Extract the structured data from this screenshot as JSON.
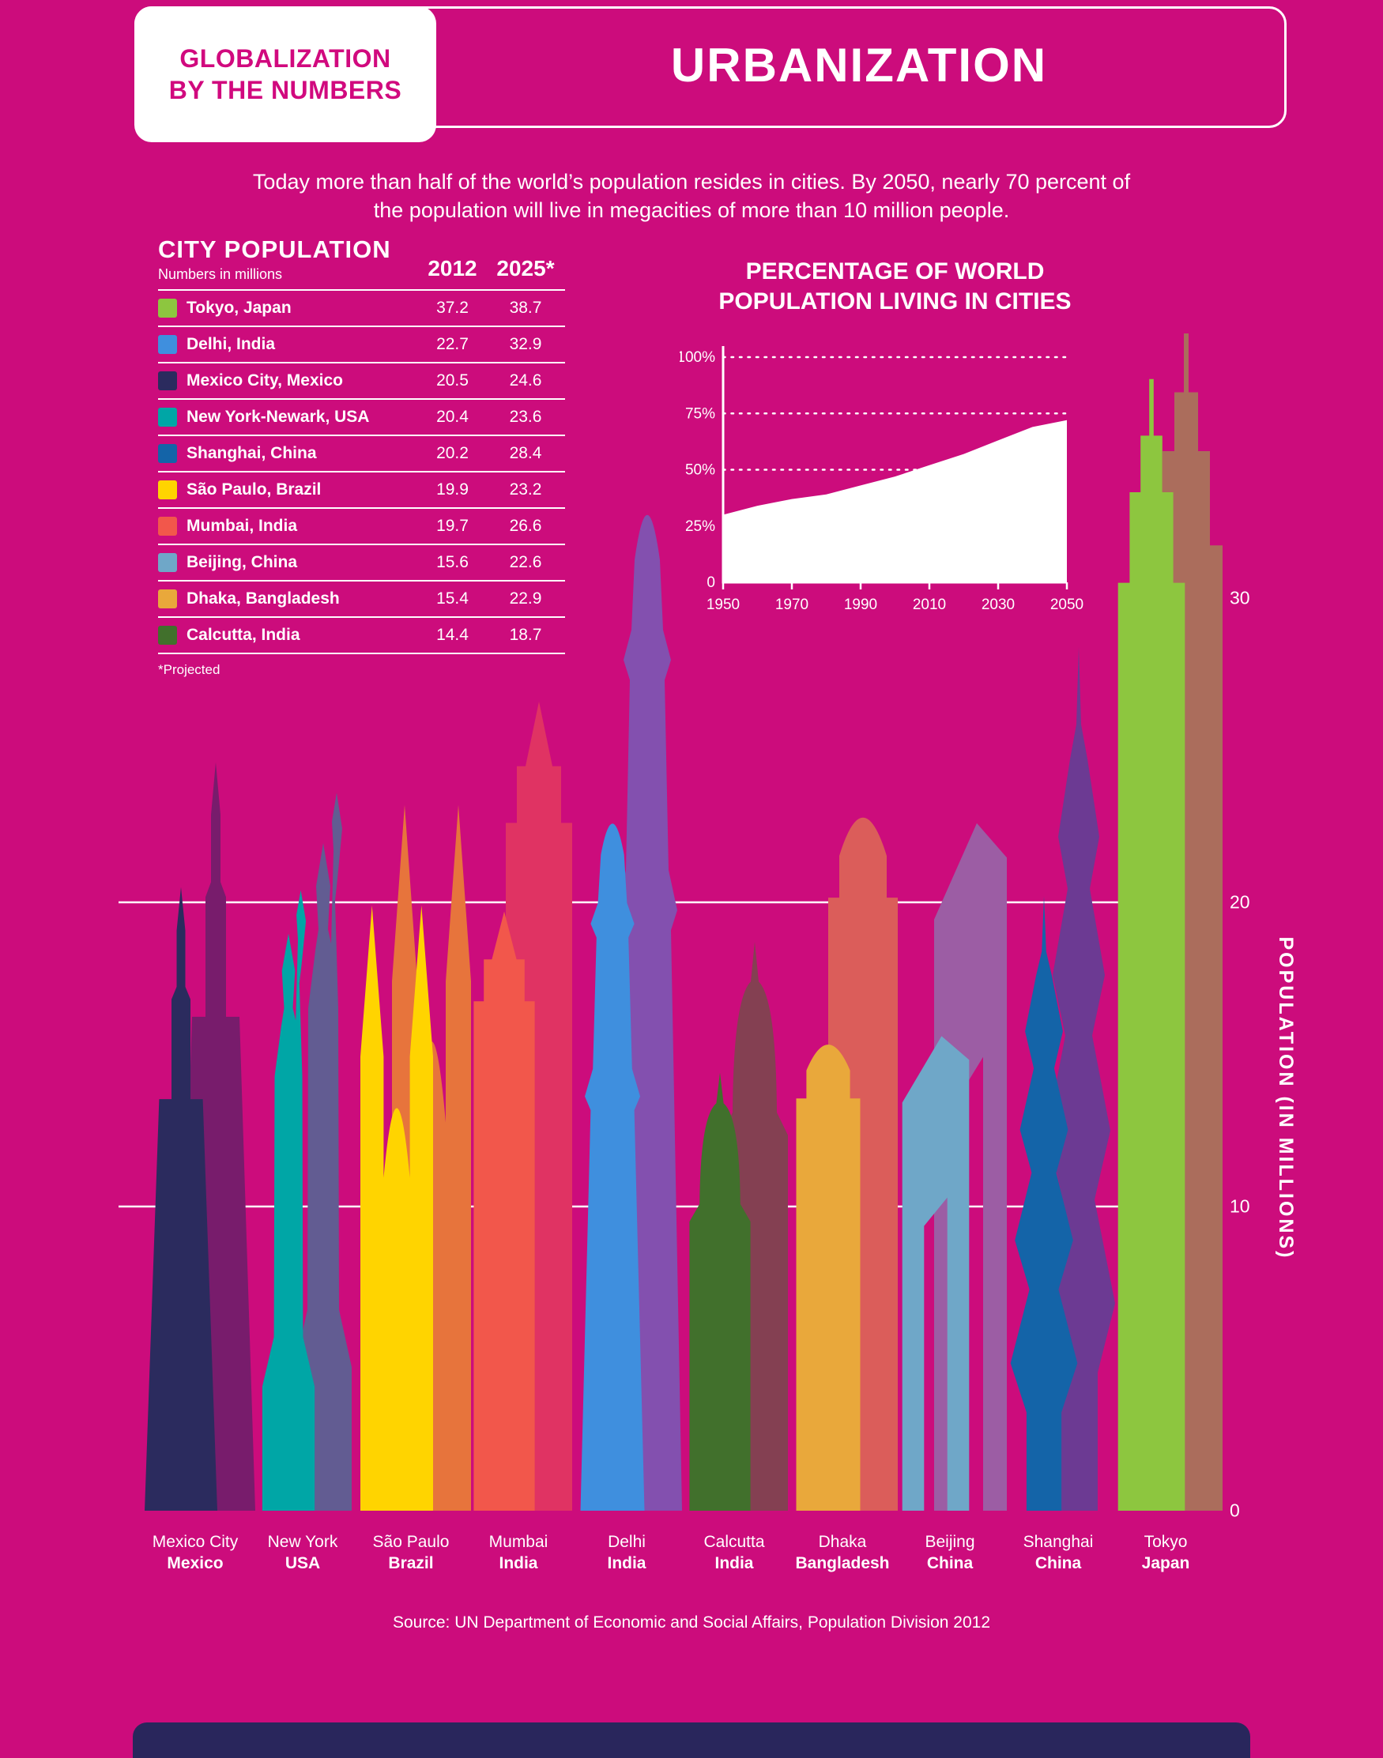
{
  "colors": {
    "background": "#CC0C7C",
    "brand_text": "#D1097E",
    "panel_white": "#FFFFFF",
    "bottom_bar": "#29265C",
    "grid_line": "#FFFFFF"
  },
  "header": {
    "brand_line1": "GLOBALIZATION",
    "brand_line2": "BY THE NUMBERS",
    "title": "URBANIZATION"
  },
  "intro": {
    "line1": "Today more than half of the world’s population resides in cities. By 2050, nearly 70 percent of",
    "line2": "the population will live in megacities of more than 10 million people."
  },
  "table": {
    "title": "CITY POPULATION",
    "subtitle": "Numbers in millions",
    "col_2012": "2012",
    "col_2025": "2025*",
    "footnote": "*Projected",
    "rows": [
      {
        "city": "Tokyo, Japan",
        "v2012": "37.2",
        "v2025": "38.7",
        "color": "#8DC63F"
      },
      {
        "city": "Delhi, India",
        "v2012": "22.7",
        "v2025": "32.9",
        "color": "#3F8FDE"
      },
      {
        "city": "Mexico City, Mexico",
        "v2012": "20.5",
        "v2025": "24.6",
        "color": "#2B2B5E"
      },
      {
        "city": "New York-Newark, USA",
        "v2012": "20.4",
        "v2025": "23.6",
        "color": "#00A6A6"
      },
      {
        "city": "Shanghai, China",
        "v2012": "20.2",
        "v2025": "28.4",
        "color": "#1464A8"
      },
      {
        "city": "São Paulo, Brazil",
        "v2012": "19.9",
        "v2025": "23.2",
        "color": "#FFD400"
      },
      {
        "city": "Mumbai, India",
        "v2012": "19.7",
        "v2025": "26.6",
        "color": "#F2574B"
      },
      {
        "city": "Beijing, China",
        "v2012": "15.6",
        "v2025": "22.6",
        "color": "#6FA7C8"
      },
      {
        "city": "Dhaka, Bangladesh",
        "v2012": "15.4",
        "v2025": "22.9",
        "color": "#E9A83B"
      },
      {
        "city": "Calcutta, India",
        "v2012": "14.4",
        "v2025": "18.7",
        "color": "#41702C"
      }
    ]
  },
  "chart_data": [
    {
      "type": "area",
      "title": "PERCENTAGE OF WORLD POPULATION LIVING IN CITIES",
      "title_lines": [
        "PERCENTAGE OF WORLD",
        "POPULATION LIVING IN CITIES"
      ],
      "x": [
        1950,
        1960,
        1970,
        1980,
        1990,
        2000,
        2010,
        2020,
        2030,
        2040,
        2050
      ],
      "values": [
        30,
        34,
        37,
        39,
        43,
        47,
        52,
        57,
        63,
        69,
        72
      ],
      "ylim": [
        0,
        100
      ],
      "y_ticks": [
        100,
        75,
        50,
        25,
        0
      ],
      "y_tick_labels": [
        "100%",
        "75%",
        "50%",
        "25%",
        "0"
      ],
      "x_ticks": [
        1950,
        1970,
        1990,
        2010,
        2030,
        2050
      ],
      "x_tick_labels": [
        "1950",
        "1970",
        "1990",
        "2010",
        "2030",
        "2050"
      ],
      "fill_color": "#FFFFFF",
      "gridlines": "dotted",
      "legend_position": "none"
    },
    {
      "type": "bar",
      "ylabel": "POPULATION (IN MILLIONS)",
      "ylim": [
        0,
        40
      ],
      "y_ticks": [
        0,
        10,
        20,
        30
      ],
      "gridlines_at": [
        10,
        20
      ],
      "series_names": [
        "2012",
        "2025 (projected)"
      ],
      "categories": [
        {
          "label": "Mexico City",
          "sublabel": "Mexico",
          "v2012": 20.5,
          "v2025": 24.6,
          "color": "#2B2B5E",
          "style": "monument"
        },
        {
          "label": "New York",
          "sublabel": "USA",
          "v2012": 20.4,
          "v2025": 23.6,
          "color": "#00A6A6",
          "style": "liberty"
        },
        {
          "label": "São Paulo",
          "sublabel": "Brazil",
          "v2012": 19.9,
          "v2025": 23.2,
          "color": "#FFD400",
          "style": "cathedral"
        },
        {
          "label": "Mumbai",
          "sublabel": "India",
          "v2012": 19.7,
          "v2025": 26.6,
          "color": "#F2574B",
          "style": "clocktower"
        },
        {
          "label": "Delhi",
          "sublabel": "India",
          "v2012": 22.7,
          "v2025": 32.9,
          "color": "#3F8FDE",
          "style": "minaret"
        },
        {
          "label": "Calcutta",
          "sublabel": "India",
          "v2012": 14.4,
          "v2025": 18.7,
          "color": "#41702C",
          "style": "dome"
        },
        {
          "label": "Dhaka",
          "sublabel": "Bangladesh",
          "v2012": 15.4,
          "v2025": 22.9,
          "color": "#E9A83B",
          "style": "block"
        },
        {
          "label": "Beijing",
          "sublabel": "China",
          "v2012": 15.6,
          "v2025": 22.6,
          "color": "#6FA7C8",
          "style": "cctv"
        },
        {
          "label": "Shanghai",
          "sublabel": "China",
          "v2012": 20.2,
          "v2025": 28.4,
          "color": "#1464A8",
          "style": "pagoda"
        },
        {
          "label": "Tokyo",
          "sublabel": "Japan",
          "v2012": 37.2,
          "v2025": 38.7,
          "color": "#8DC63F",
          "style": "skyscraper"
        }
      ]
    }
  ],
  "footer": {
    "source": "Source: UN Department of Economic and Social Affairs, Population Division 2012"
  }
}
